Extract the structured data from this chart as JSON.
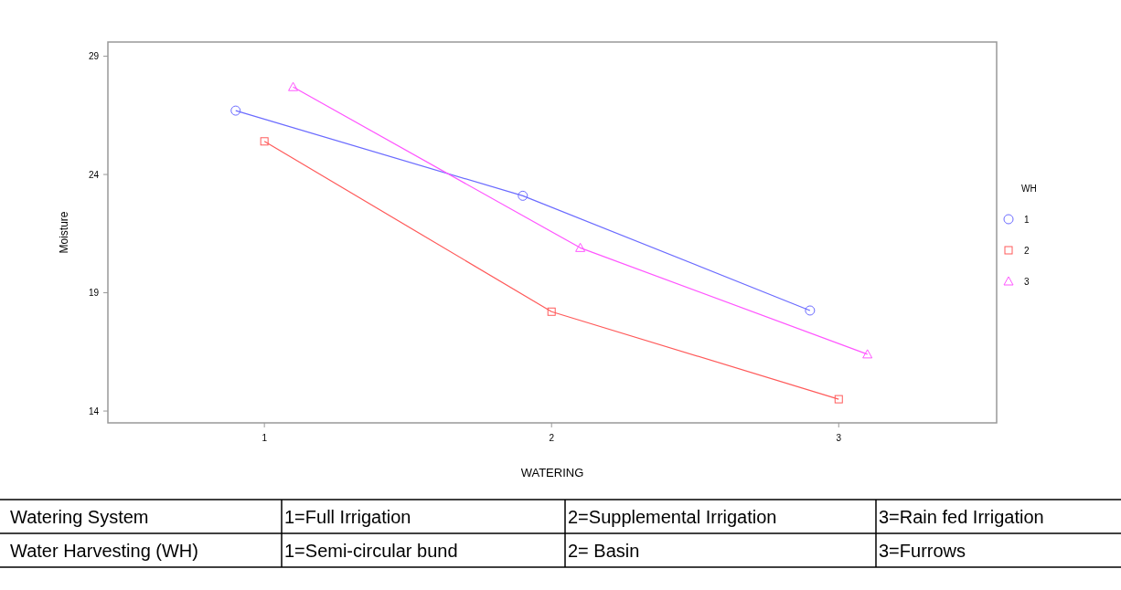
{
  "chart_data": {
    "type": "line",
    "xlabel": "WATERING",
    "ylabel": "Moisture",
    "legend_title": "WH",
    "legend": "right",
    "grid": false,
    "xlim": [
      0.455,
      3.55
    ],
    "xticks": [
      1,
      2,
      3
    ],
    "ylim": [
      13.5,
      29.6
    ],
    "yticks": [
      14,
      19,
      24,
      29
    ],
    "series": [
      {
        "name": "1",
        "color": "#6b6bff",
        "marker": "circle",
        "x": [
          0.9,
          1.9,
          2.9
        ],
        "values": [
          26.7,
          23.1,
          18.25
        ]
      },
      {
        "name": "2",
        "color": "#ff5a5a",
        "marker": "square",
        "x": [
          1,
          2,
          3
        ],
        "values": [
          25.4,
          18.2,
          14.5
        ]
      },
      {
        "name": "3",
        "color": "#ff55ff",
        "marker": "triangle",
        "x": [
          1.1,
          2.1,
          3.1
        ],
        "values": [
          27.7,
          20.9,
          16.4
        ]
      }
    ],
    "annotations": [
      "Watering System",
      "1=Full Irrigation",
      "2=Supplemental Irrigation",
      "3=Rain fed Irrigation",
      "Water Harvesting (WH)",
      "1=Semi-circular bund",
      "2= Basin",
      "3=Furrows"
    ]
  }
}
